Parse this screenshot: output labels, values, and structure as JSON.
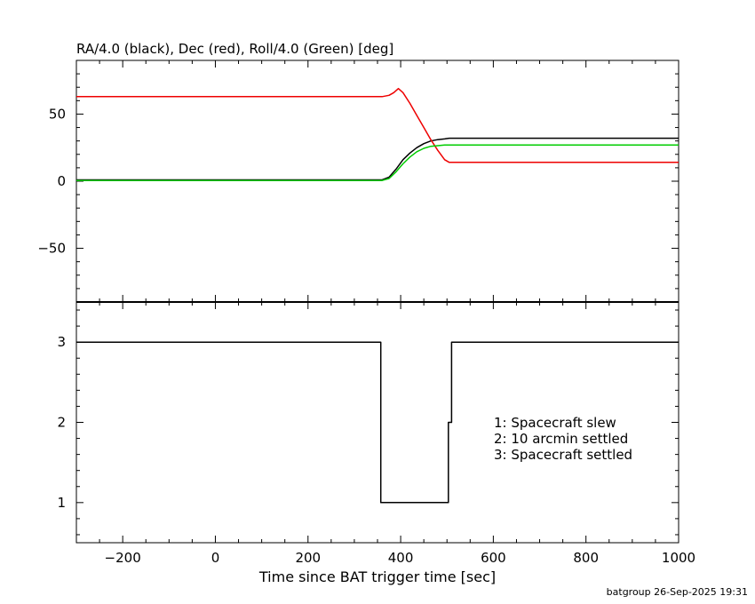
{
  "footer": "batgroup 26-Sep-2025 19:31",
  "chart_data": [
    {
      "type": "line",
      "title": "RA/4.0 (black), Dec (red), Roll/4.0 (Green) [deg]",
      "xlim": [
        -300,
        1000
      ],
      "ylim": [
        -90,
        90
      ],
      "yticks": [
        -50,
        0,
        50
      ],
      "grid": false,
      "series": [
        {
          "name": "RA/4.0",
          "color": "#000000",
          "x": [
            -300,
            360,
            375,
            390,
            405,
            420,
            435,
            450,
            465,
            480,
            495,
            505,
            1000
          ],
          "y": [
            1,
            1,
            3,
            9,
            16,
            21,
            25,
            28,
            30,
            31,
            31.5,
            32,
            32
          ]
        },
        {
          "name": "Dec",
          "color": "#ee0000",
          "x": [
            -300,
            360,
            375,
            385,
            395,
            405,
            420,
            435,
            450,
            465,
            480,
            495,
            505,
            1000
          ],
          "y": [
            63,
            63,
            64,
            66,
            69,
            66,
            58,
            49,
            40,
            31,
            23,
            16,
            14,
            14
          ]
        },
        {
          "name": "Roll/4.0",
          "color": "#00cc00",
          "x": [
            -300,
            360,
            375,
            390,
            405,
            420,
            435,
            450,
            465,
            480,
            495,
            505,
            1000
          ],
          "y": [
            0.5,
            0.5,
            2,
            7,
            13,
            18,
            22,
            24.5,
            26,
            26.5,
            27,
            27,
            27
          ]
        }
      ]
    },
    {
      "type": "line",
      "xlabel": "Time since BAT trigger time [sec]",
      "xlim": [
        -300,
        1000
      ],
      "ylim": [
        0.5,
        3.5
      ],
      "xticks": [
        -200,
        0,
        200,
        400,
        600,
        800,
        1000
      ],
      "yticks": [
        1,
        2,
        3
      ],
      "grid": false,
      "annotations": [
        "1: Spacecraft slew",
        "2: 10 arcmin settled",
        "3: Spacecraft settled"
      ],
      "series": [
        {
          "color": "#000000",
          "x": [
            -300,
            357,
            357,
            503,
            503,
            510,
            510,
            1000
          ],
          "y": [
            3,
            3,
            1,
            1,
            2,
            2,
            3,
            3
          ]
        }
      ]
    }
  ]
}
